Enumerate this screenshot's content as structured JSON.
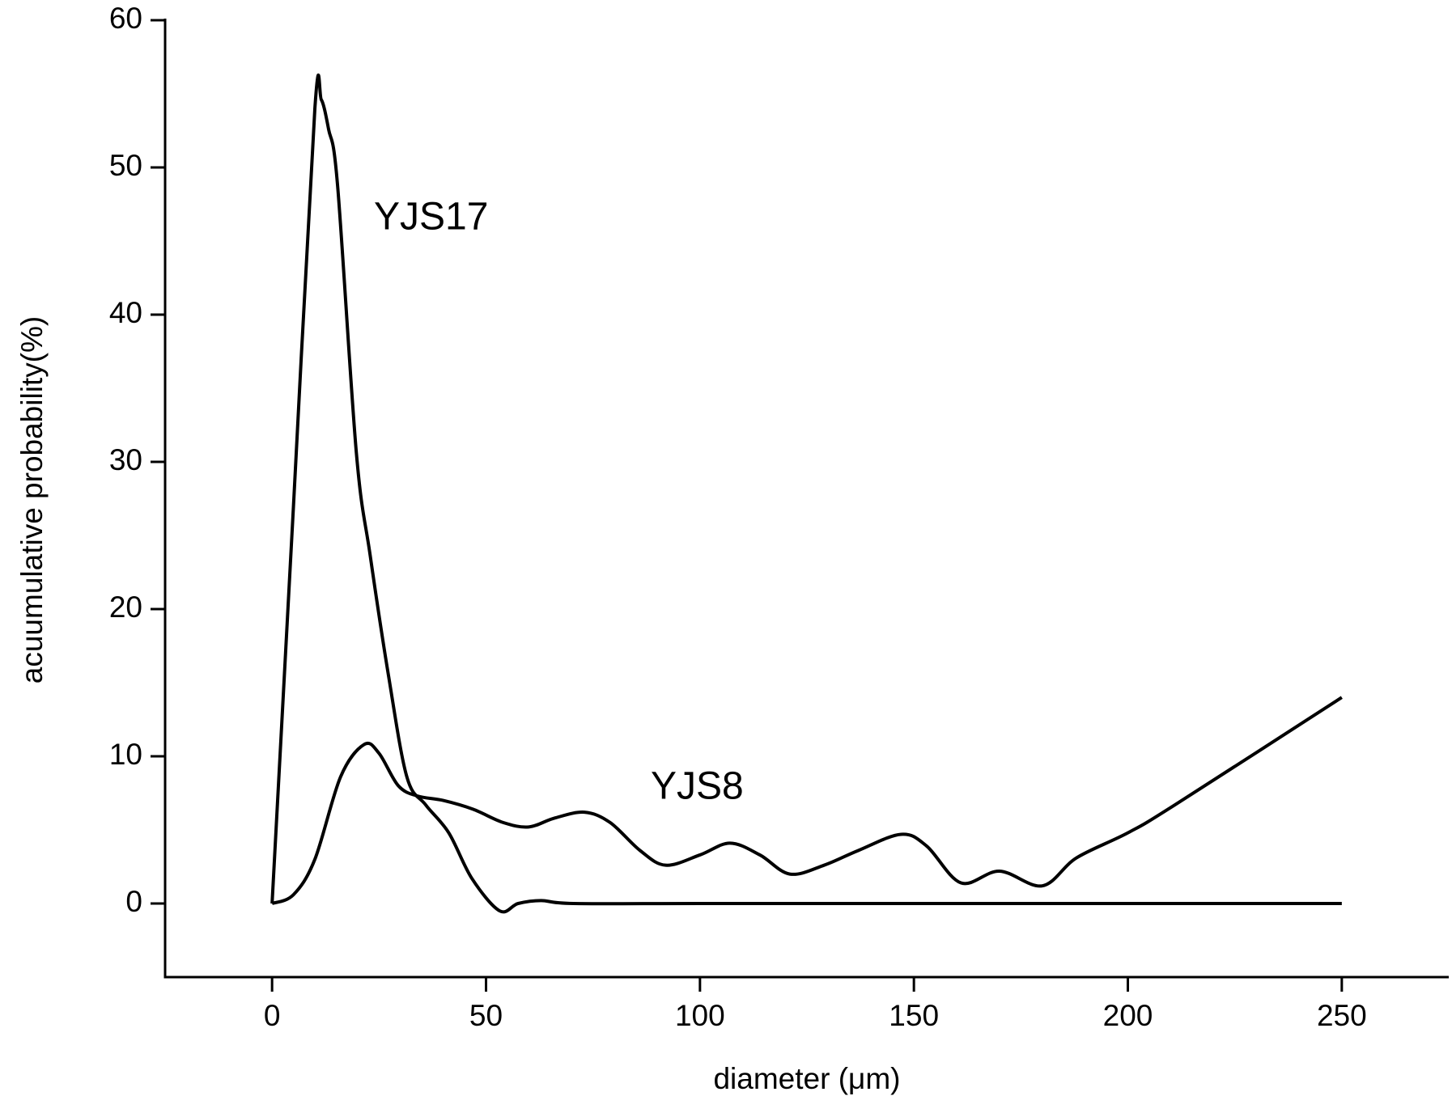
{
  "chart_data": {
    "type": "line",
    "x_label": "diameter (μm)",
    "y_label": "acuumulative probability(%)",
    "xlim": [
      -25,
      275
    ],
    "xticks": [
      0,
      50,
      100,
      150,
      200,
      250
    ],
    "ylim": [
      -5,
      60
    ],
    "yticks": [
      0,
      10,
      20,
      30,
      40,
      50,
      60
    ],
    "grid": false,
    "series": [
      {
        "name": "YJS17",
        "color": "#000000",
        "x": [
          0,
          5,
          10,
          11.5,
          13.2,
          15.3,
          19.7,
          22.9,
          27.2,
          31.5,
          35.9,
          41.3,
          46.7,
          53.2,
          57.5,
          62.9,
          70.4,
          100,
          150,
          200,
          250
        ],
        "values": [
          0,
          27,
          54,
          54.6,
          52.6,
          48.8,
          30.6,
          23.7,
          15.5,
          8.6,
          6.7,
          4.8,
          1.7,
          -0.5,
          0,
          0.2,
          0,
          0,
          0,
          0,
          0
        ]
      },
      {
        "name": "YJS8",
        "color": "#000000",
        "x": [
          0,
          5,
          10,
          16,
          21.5,
          25,
          29.5,
          34,
          40,
          47,
          54,
          60,
          66,
          73,
          79,
          86,
          92,
          100,
          107,
          114,
          121,
          129,
          137,
          147,
          153,
          161,
          170,
          180,
          188,
          200,
          211,
          250
        ],
        "values": [
          0,
          0.6,
          3,
          8.6,
          10.8,
          10.2,
          8,
          7.3,
          7,
          6.4,
          5.5,
          5.2,
          5.8,
          6.2,
          5.5,
          3.6,
          2.6,
          3.3,
          4.1,
          3.3,
          2,
          2.6,
          3.6,
          4.7,
          3.9,
          1.4,
          2.2,
          1.2,
          3.1,
          4.8,
          6.7,
          14
        ]
      }
    ]
  }
}
